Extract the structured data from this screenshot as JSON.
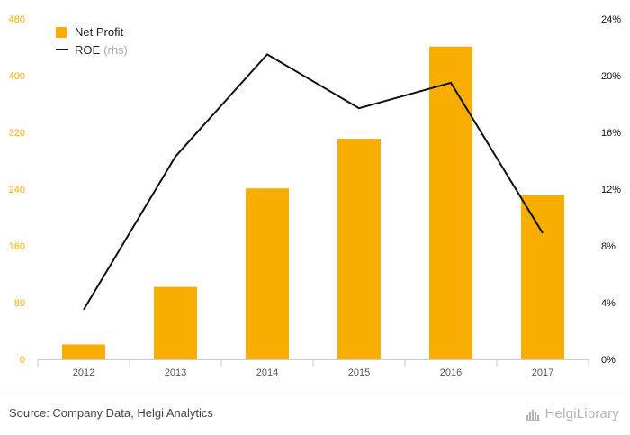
{
  "chart_data": {
    "type": "bar",
    "categories": [
      "2012",
      "2013",
      "2014",
      "2015",
      "2016",
      "2017"
    ],
    "series": [
      {
        "name": "Net Profit",
        "type": "bar",
        "axis": "left",
        "color": "#f7ae00",
        "values": [
          21,
          102,
          241,
          311,
          441,
          232
        ]
      },
      {
        "name": "ROE",
        "type": "line",
        "axis": "right",
        "color": "#111111",
        "values": [
          3.5,
          14.3,
          21.5,
          17.7,
          19.5,
          8.9
        ]
      }
    ],
    "legend": [
      {
        "label": "Net Profit",
        "suffix": ""
      },
      {
        "label": "ROE",
        "suffix": "(rhs)"
      }
    ],
    "legend_position": "top-left",
    "y_left": {
      "ticks": [
        "0",
        "80",
        "160",
        "240",
        "320",
        "400",
        "480"
      ],
      "min": 0,
      "max": 480,
      "color": "#f7ae00"
    },
    "y_right": {
      "ticks": [
        "0%",
        "4%",
        "8%",
        "12%",
        "16%",
        "20%",
        "24%"
      ],
      "min": 0,
      "max": 24,
      "color": "#111111"
    },
    "grid": "none"
  },
  "source": "Source: Company Data, Helgi Analytics",
  "logo": {
    "text": "HelgiLibrary",
    "color": "#b3b3b3"
  }
}
